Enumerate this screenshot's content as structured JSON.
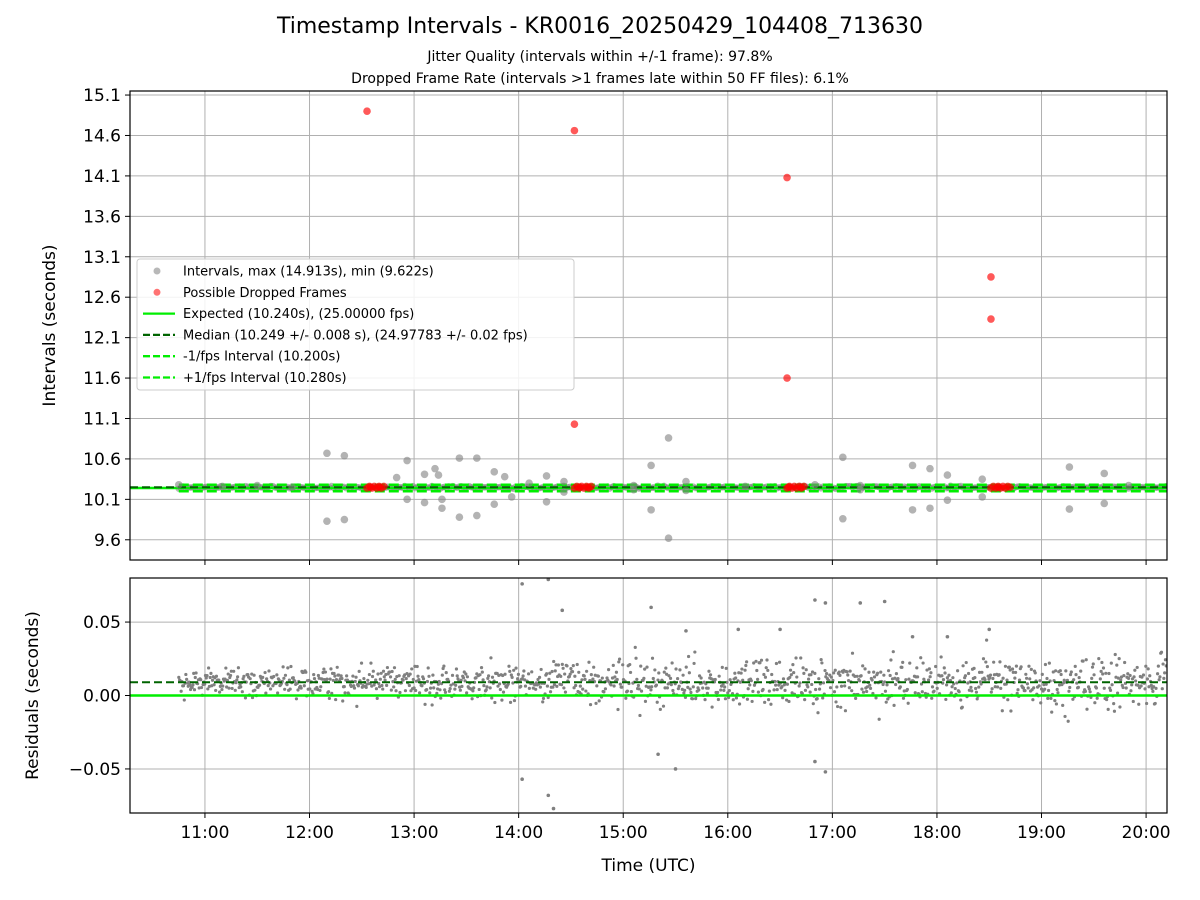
{
  "figure": {
    "title": "Timestamp Intervals - KR0016_20250429_104408_713630",
    "subtitle1": "Jitter Quality (intervals within +/-1 frame): 97.8%",
    "subtitle2": "Dropped Frame Rate (intervals >1 frames late within 50 FF files): 6.1%"
  },
  "colors": {
    "interval_points": "#808080",
    "dropped_points": "#ff0000",
    "expected_line": "#00ee00",
    "median_line": "#006400",
    "fps_interval_line": "#00ee00",
    "grid": "#b0b0b0"
  },
  "chart_data": [
    {
      "type": "scatter",
      "name": "intervals-panel",
      "ylabel": "Intervals (seconds)",
      "xlabel": "",
      "xlim": [
        "10:17",
        "20:12"
      ],
      "ylim": [
        9.35,
        15.15
      ],
      "yticks": [
        "9.6",
        "10.1",
        "10.6",
        "11.1",
        "11.6",
        "12.1",
        "12.6",
        "13.1",
        "13.6",
        "14.1",
        "14.6",
        "15.1"
      ],
      "grid": true,
      "legend_position": "center-left",
      "legend": [
        {
          "label": "Intervals, max (14.913s), min (9.622s)",
          "kind": "marker",
          "color": "#a0a0a0"
        },
        {
          "label": "Possible Dropped Frames",
          "kind": "marker",
          "color": "#ff4444"
        },
        {
          "label": "Expected (10.240s), (25.00000 fps)",
          "kind": "solid",
          "color": "#00ee00"
        },
        {
          "label": "Median (10.249 +/- 0.008 s), (24.97783 +/- 0.02 fps)",
          "kind": "dashed",
          "color": "#006400"
        },
        {
          "label": "-1/fps Interval (10.200s)",
          "kind": "dashed",
          "color": "#00ee00"
        },
        {
          "label": "+1/fps Interval (10.280s)",
          "kind": "dashed",
          "color": "#00ee00"
        }
      ],
      "reference_lines": {
        "expected": 10.24,
        "median": 10.249,
        "minus_1_fps": 10.2,
        "plus_1_fps": 10.28
      },
      "series": [
        {
          "name": "Intervals",
          "x": [
            "12:10",
            "12:20",
            "12:10",
            "12:20",
            "12:50",
            "12:56",
            "12:56",
            "13:06",
            "13:06",
            "13:12",
            "13:16",
            "13:14",
            "13:16",
            "13:26",
            "13:26",
            "13:36",
            "13:36",
            "13:46",
            "13:46",
            "13:52",
            "13:56",
            "14:06",
            "14:16",
            "14:16",
            "14:26",
            "14:26",
            "15:16",
            "15:16",
            "15:26",
            "15:26",
            "15:36",
            "15:36",
            "17:06",
            "17:06",
            "17:16",
            "17:16",
            "17:46",
            "17:46",
            "17:56",
            "17:56",
            "18:06",
            "18:06",
            "18:26",
            "18:26",
            "19:16",
            "19:16",
            "19:36",
            "19:36",
            "15:06",
            "15:06",
            "10:45",
            "11:10",
            "11:30",
            "11:50",
            "16:10",
            "16:50",
            "19:50"
          ],
          "y": [
            10.67,
            10.64,
            9.83,
            9.85,
            10.37,
            10.58,
            10.1,
            10.41,
            10.06,
            10.48,
            9.99,
            10.4,
            10.1,
            10.61,
            9.88,
            10.61,
            9.9,
            10.44,
            10.04,
            10.38,
            10.13,
            10.3,
            10.39,
            10.07,
            10.32,
            10.19,
            10.52,
            9.97,
            10.86,
            9.62,
            10.32,
            10.21,
            10.62,
            9.86,
            10.27,
            10.22,
            10.52,
            9.97,
            10.48,
            9.99,
            10.4,
            10.09,
            10.35,
            10.13,
            10.5,
            9.98,
            10.42,
            10.05,
            10.27,
            10.22,
            10.28,
            10.26,
            10.27,
            10.25,
            10.26,
            10.28,
            10.27
          ]
        },
        {
          "name": "Possible Dropped Frames",
          "x": [
            "12:33",
            "14:32",
            "16:34",
            "16:34",
            "18:31",
            "18:31",
            "14:32",
            "12:35",
            "12:40",
            "14:35",
            "14:40",
            "16:35",
            "16:42",
            "18:35",
            "18:42"
          ],
          "y": [
            14.9,
            14.66,
            14.08,
            11.6,
            12.85,
            12.33,
            11.03,
            10.25,
            10.25,
            10.25,
            10.25,
            10.25,
            10.25,
            10.25,
            10.25
          ]
        }
      ]
    },
    {
      "type": "scatter",
      "name": "residuals-panel",
      "ylabel": "Residuals (seconds)",
      "xlabel": "Time (UTC)",
      "xlim": [
        "10:17",
        "20:12"
      ],
      "ylim": [
        -0.08,
        0.08
      ],
      "xticks": [
        "11:00",
        "12:00",
        "13:00",
        "14:00",
        "15:00",
        "16:00",
        "17:00",
        "18:00",
        "19:00",
        "20:00"
      ],
      "yticks": [
        "0.05",
        "0.00",
        "−0.05"
      ],
      "grid": true,
      "reference_lines": {
        "expected": 0.0,
        "median": 0.009
      },
      "series": [
        {
          "name": "Residuals",
          "x": [
            "14:02",
            "14:02",
            "14:17",
            "14:20",
            "14:17",
            "14:25",
            "15:16",
            "16:30",
            "17:16",
            "17:46",
            "16:50",
            "16:56",
            "16:50",
            "16:56",
            "17:30",
            "15:20",
            "15:30",
            "16:06",
            "18:06",
            "18:30",
            "15:36"
          ],
          "y": [
            0.076,
            -0.057,
            0.079,
            -0.077,
            -0.068,
            0.058,
            0.06,
            0.045,
            0.063,
            0.04,
            0.065,
            0.063,
            -0.045,
            -0.052,
            0.064,
            -0.04,
            -0.05,
            0.045,
            0.04,
            0.045,
            0.044
          ]
        }
      ]
    }
  ]
}
